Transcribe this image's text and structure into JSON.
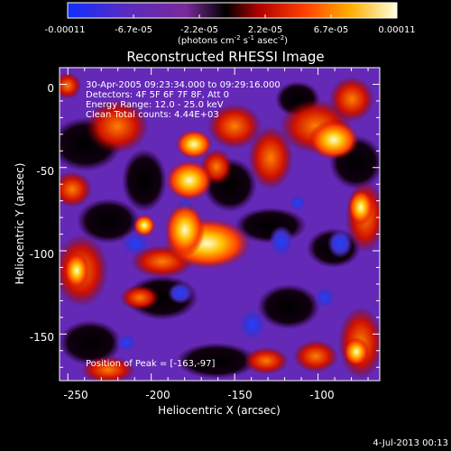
{
  "colorbar": {
    "ticks": [
      "-0.00011",
      "-6.7e-05",
      "-2.2e-05",
      "2.2e-05",
      "6.7e-05",
      "0.00011"
    ],
    "units_main": "(photons cm",
    "units_exp1": "-2",
    "units_mid": " s",
    "units_exp2": "-1",
    "units_end": " asec",
    "units_exp3": "-2",
    "units_close": ")",
    "colors": [
      "#1030ff",
      "#5a2ac0",
      "#7a2a9a",
      "#000000",
      "#b00000",
      "#ff4000",
      "#ffb000",
      "#ffffe0"
    ]
  },
  "image": {
    "title": "Reconstructed RHESSI Image",
    "info_lines": [
      "30-Apr-2005 09:23:34.000 to 09:29:16.000",
      "Detectors: 4F 5F 6F 7F 8F, Att 0",
      "Energy Range: 12.0 - 25.0 keV",
      "Clean     Total counts: 4.44E+03"
    ],
    "peak_text": "Position of Peak = [-163,-97]",
    "xlabel": "Heliocentric X (arcsec)",
    "ylabel": "Heliocentric Y (arcsec)",
    "x_ticks": [
      "-250",
      "-200",
      "-150",
      "-100"
    ],
    "y_ticks": [
      "0",
      "-50",
      "-100",
      "-150"
    ],
    "xlim": [
      -255,
      -63
    ],
    "ylim": [
      -178,
      10
    ],
    "footer_date": "4-Jul-2013 00:13"
  }
}
